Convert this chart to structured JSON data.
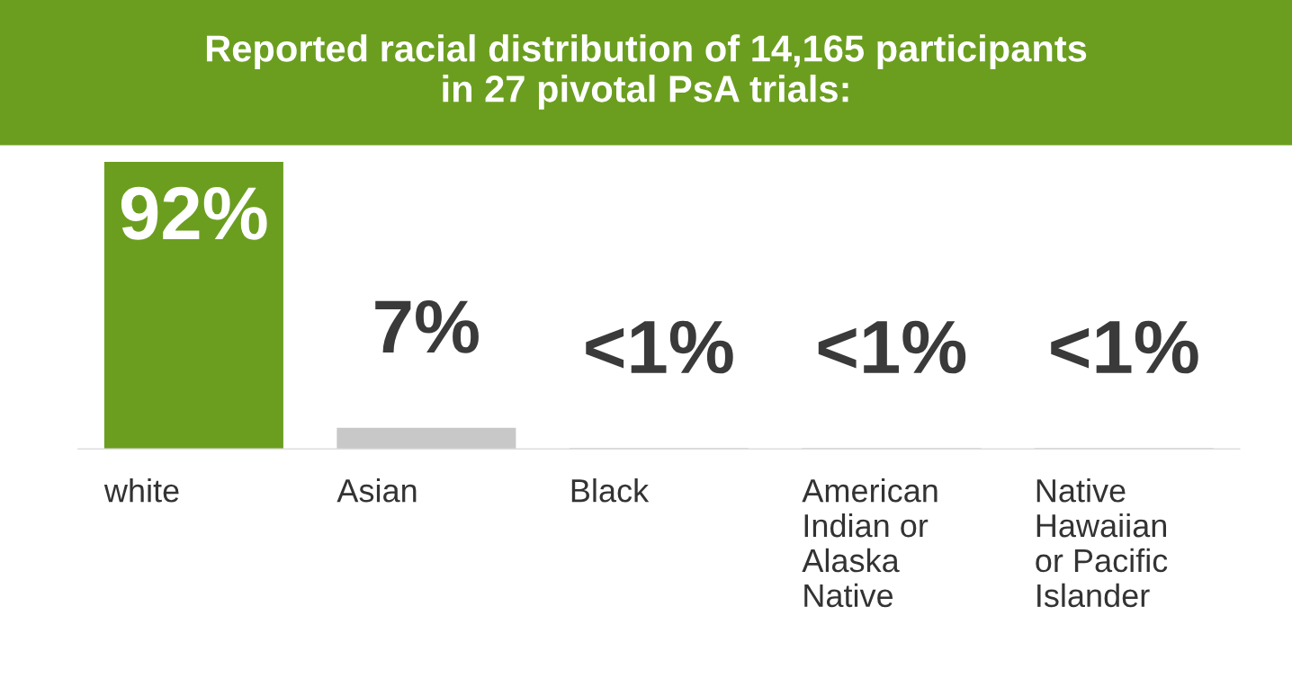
{
  "chart_data": {
    "type": "bar",
    "title": "Reported racial distribution of 14,165 participants\nin 27 pivotal PsA trials:",
    "categories": [
      "white",
      "Asian",
      "Black",
      "American\nIndian or\nAlaska\nNative",
      "Native\nHawaiian\nor Pacific\nIslander"
    ],
    "values": [
      92,
      7,
      0.5,
      0.5,
      0.5
    ],
    "colors": [
      "#6b9e1f",
      "#c8c8c8",
      "#c8c8c8",
      "#c8c8c8",
      "#c8c8c8"
    ],
    "value_labels": [
      "92%",
      "7%",
      "<1%",
      "<1%",
      "<1%"
    ]
  }
}
